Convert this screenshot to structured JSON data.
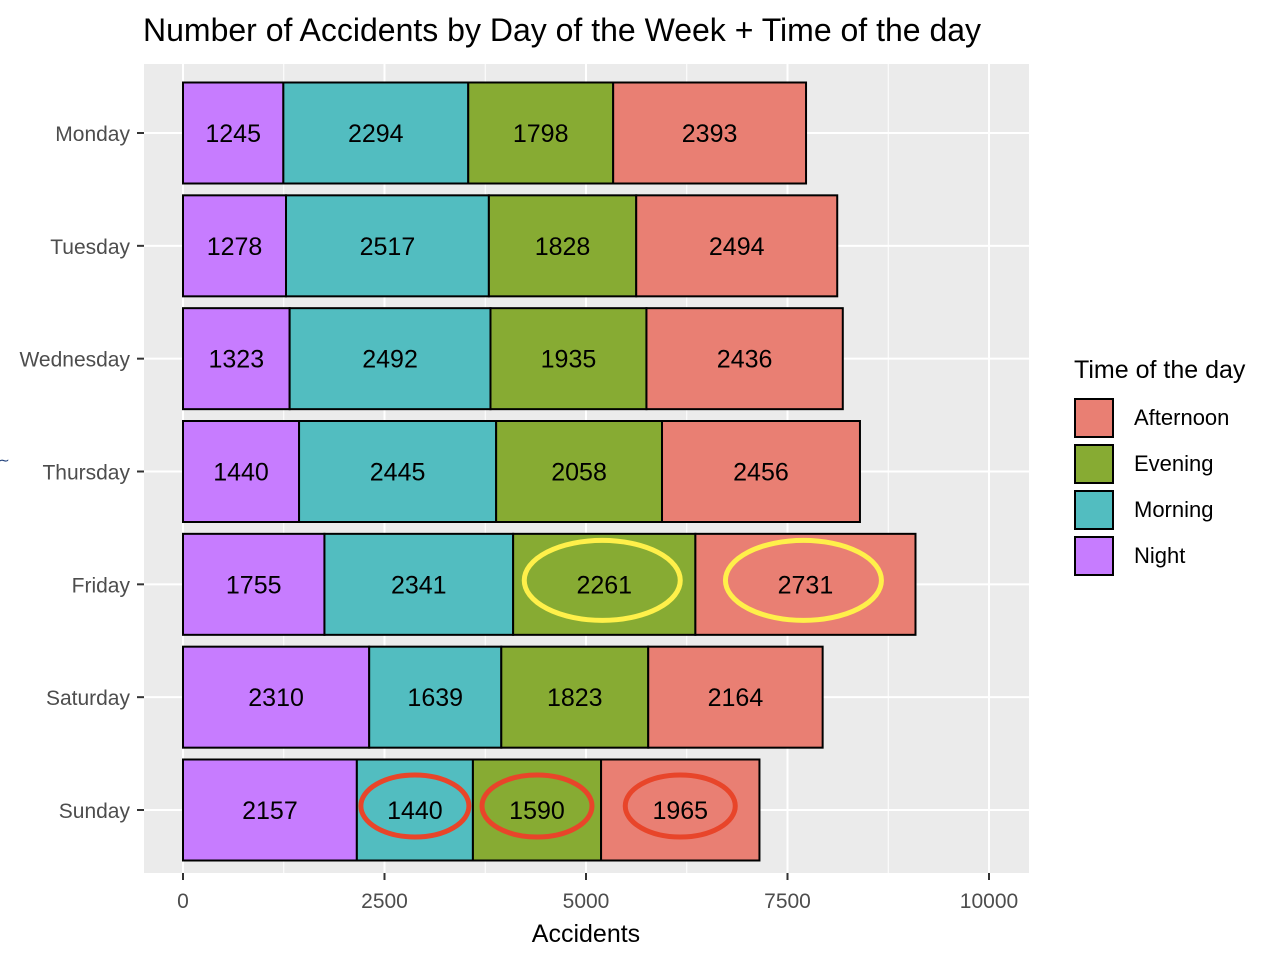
{
  "chart_data": {
    "type": "bar",
    "orientation": "horizontal",
    "stacked": true,
    "title": "Number of Accidents by Day of the Week + Time of the day",
    "xlabel": "Accidents",
    "ylabel": "",
    "xlim": [
      0,
      10000
    ],
    "x_ticks": [
      0,
      2500,
      5000,
      7500,
      10000
    ],
    "x_tick_labels": [
      "0",
      "2500",
      "5000",
      "7500",
      "10000"
    ],
    "categories": [
      "Monday",
      "Tuesday",
      "Wednesday",
      "Thursday",
      "Friday",
      "Saturday",
      "Sunday"
    ],
    "series": [
      {
        "name": "Night",
        "color": "#C77CFF",
        "values": [
          1245,
          1278,
          1323,
          1440,
          1755,
          2310,
          2157
        ]
      },
      {
        "name": "Morning",
        "color": "#52BDC0",
        "values": [
          2294,
          2517,
          2492,
          2445,
          2341,
          1639,
          1440
        ]
      },
      {
        "name": "Evening",
        "color": "#87AB33",
        "values": [
          1798,
          1828,
          1935,
          2058,
          2261,
          1823,
          1590
        ]
      },
      {
        "name": "Afternoon",
        "color": "#E97F73",
        "values": [
          2393,
          2494,
          2436,
          2456,
          2731,
          2164,
          1965
        ]
      }
    ],
    "legend": {
      "title": "Time of the day",
      "position": "right",
      "entries": [
        "Afternoon",
        "Evening",
        "Morning",
        "Night"
      ]
    },
    "grid": true,
    "panel_background": "#EBEBEB",
    "annotations": [
      {
        "shape": "ellipse",
        "color": "#FFF04A",
        "category": "Friday",
        "series": "Evening"
      },
      {
        "shape": "ellipse",
        "color": "#FFF04A",
        "category": "Friday",
        "series": "Afternoon"
      },
      {
        "shape": "ellipse",
        "color": "#E8452A",
        "category": "Sunday",
        "series": "Morning"
      },
      {
        "shape": "ellipse",
        "color": "#E8452A",
        "category": "Sunday",
        "series": "Evening"
      },
      {
        "shape": "ellipse",
        "color": "#E8452A",
        "category": "Sunday",
        "series": "Afternoon"
      }
    ]
  }
}
